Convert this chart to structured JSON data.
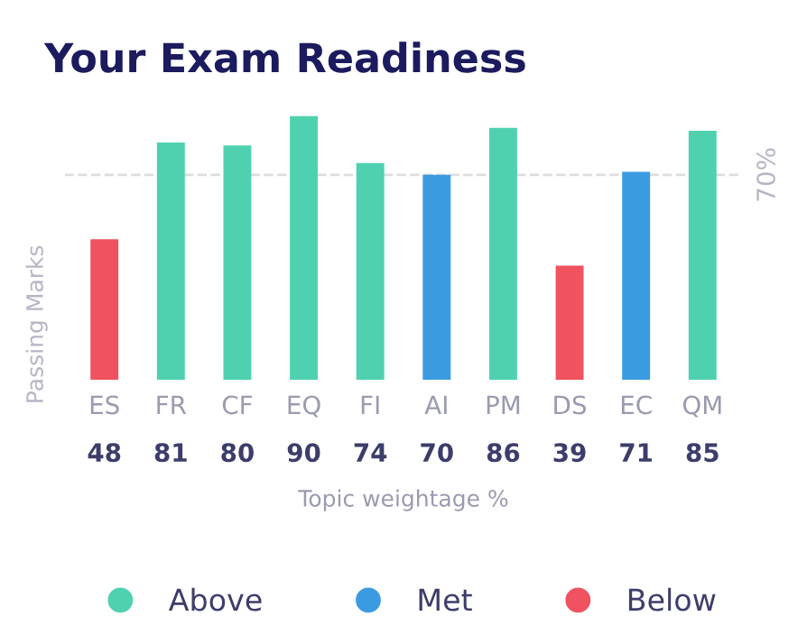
{
  "chart_data": {
    "type": "bar",
    "title": "Your Exam Readiness",
    "xlabel": "Topic weightage %",
    "ylabel": "Passing Marks",
    "categories": [
      "ES",
      "FR",
      "CF",
      "EQ",
      "FI",
      "AI",
      "PM",
      "DS",
      "EC",
      "QM"
    ],
    "series": [
      {
        "name": "Above",
        "color": "#4fd1b0",
        "values": [
          null,
          81,
          80,
          90,
          74,
          null,
          86,
          null,
          null,
          85
        ]
      },
      {
        "name": "Met",
        "color": "#3b9be0",
        "values": [
          null,
          null,
          null,
          null,
          null,
          70,
          null,
          null,
          71,
          null
        ]
      },
      {
        "name": "Below",
        "color": "#f0525f",
        "values": [
          48,
          null,
          null,
          null,
          null,
          null,
          null,
          39,
          null,
          null
        ]
      }
    ],
    "ref_lines": [
      {
        "axis": "y",
        "value": 70,
        "label": "70%",
        "color": "#dddddd",
        "line_style": "dashed"
      }
    ],
    "data_labels": true,
    "legend": "bottom",
    "grid": false
  }
}
